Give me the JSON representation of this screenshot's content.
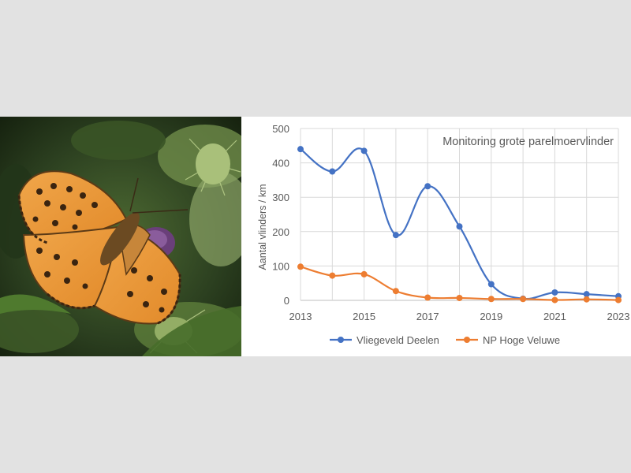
{
  "photo": {
    "subject": "butterfly-on-thistle-photo"
  },
  "chart_data": {
    "type": "line",
    "title": "Monitoring grote parelmoervlinder",
    "xlabel": "",
    "ylabel": "Aantal vlinders / km",
    "x": [
      2013,
      2014,
      2015,
      2016,
      2017,
      2018,
      2019,
      2020,
      2021,
      2022,
      2023
    ],
    "x_tick_labels": [
      "2013",
      "2015",
      "2017",
      "2019",
      "2021",
      "2023"
    ],
    "y_tick_labels": [
      "0",
      "100",
      "200",
      "300",
      "400",
      "500"
    ],
    "ylim": [
      0,
      500
    ],
    "xlim": [
      2013,
      2023
    ],
    "grid": "horizontal and vertical",
    "legend_position": "bottom",
    "smooth": true,
    "series": [
      {
        "name": "Vliegeveld Deelen",
        "color": "#4472c4",
        "values": [
          440,
          375,
          435,
          190,
          332,
          215,
          47,
          5,
          23,
          18,
          12
        ]
      },
      {
        "name": "NP Hoge Veluwe",
        "color": "#ed7d31",
        "values": [
          98,
          72,
          76,
          27,
          8,
          7,
          4,
          4,
          1,
          3,
          1
        ]
      }
    ]
  }
}
